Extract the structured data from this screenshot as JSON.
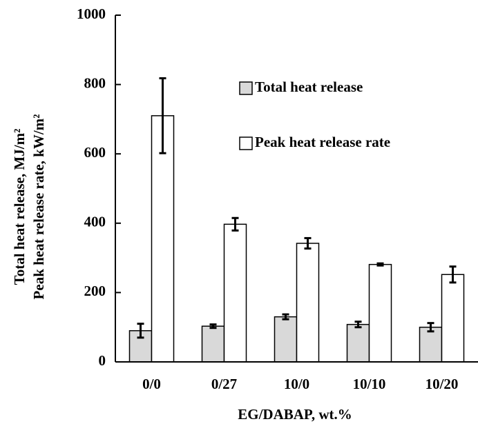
{
  "chart_data": {
    "type": "bar",
    "y_label_lines": [
      "Total heat release, MJ/m²",
      "Peak heat release rate, kW/m²"
    ],
    "x_label": "EG/DABAP, wt.%",
    "categories": [
      "0/0",
      "0/27",
      "10/0",
      "10/10",
      "10/20"
    ],
    "series": [
      {
        "name": "Total heat release",
        "color": "#d9d9d9",
        "values": [
          90,
          103,
          130,
          108,
          100
        ],
        "errors": [
          20,
          5,
          7,
          8,
          12
        ]
      },
      {
        "name": "Peak heat release rate",
        "color": "#ffffff",
        "values": [
          710,
          397,
          342,
          281,
          252
        ],
        "errors": [
          108,
          18,
          15,
          3,
          23
        ]
      }
    ],
    "ylim": [
      0,
      1000
    ],
    "yticks": [
      0,
      200,
      400,
      600,
      800,
      1000
    ]
  }
}
